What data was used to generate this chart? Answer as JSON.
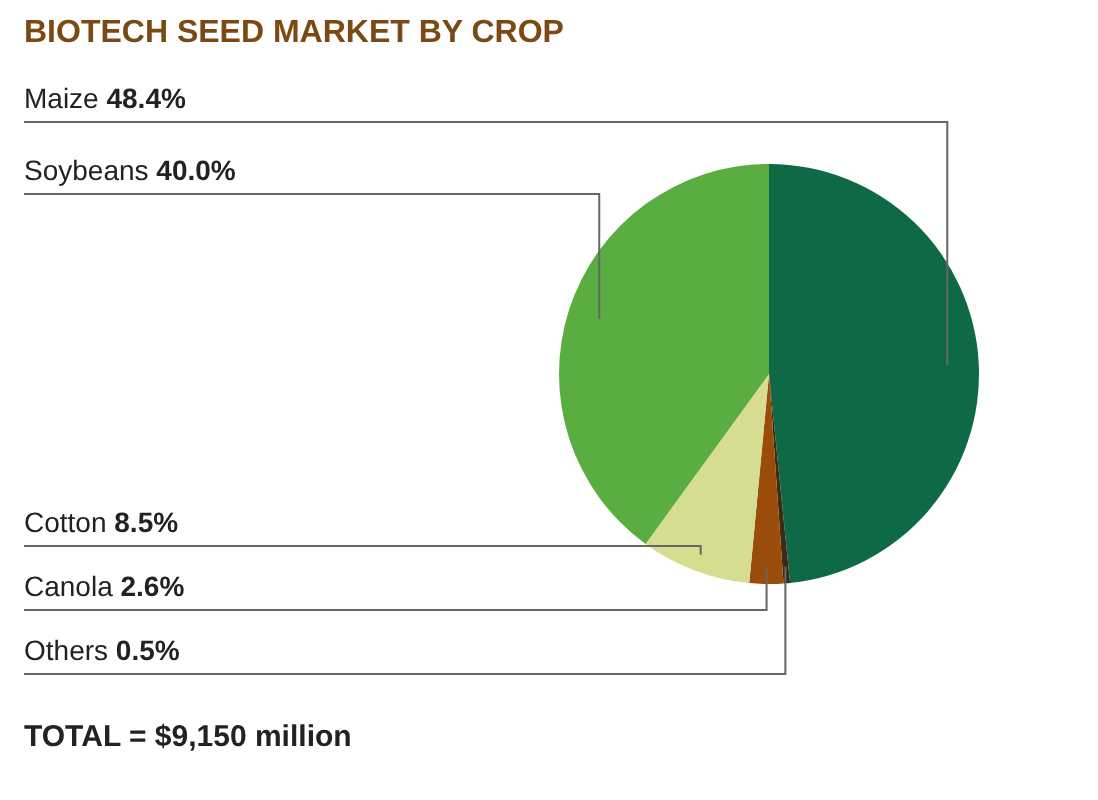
{
  "chart_data": {
    "type": "pie",
    "title": "BIOTECH SEED MARKET BY CROP",
    "categories": [
      "Maize",
      "Others",
      "Canola",
      "Cotton",
      "Soybeans"
    ],
    "values": [
      48.4,
      0.5,
      2.6,
      8.5,
      40.0
    ],
    "value_labels": [
      "48.4%",
      "0.5%",
      "2.6%",
      "8.5%",
      "40.0%"
    ],
    "colors": [
      "#0e6a46",
      "#3b2b12",
      "#9a4d0b",
      "#d6dc90",
      "#5aad40"
    ],
    "annotations": [
      "TOTAL = $9,150 million"
    ],
    "legend": false
  }
}
